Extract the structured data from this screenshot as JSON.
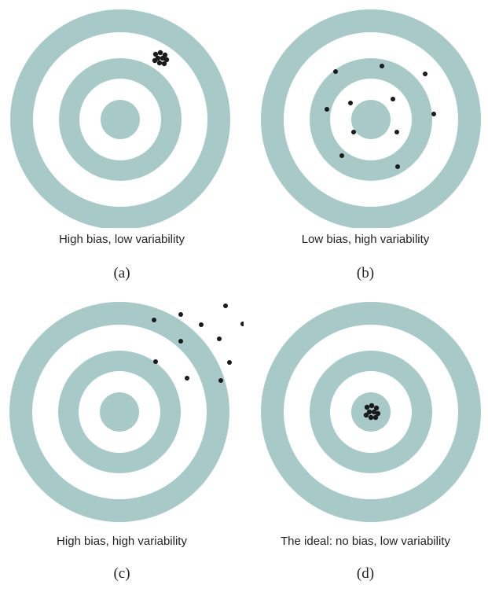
{
  "colors": {
    "ring": "#a7cac8",
    "background": "#ffffff",
    "dot": "#1a1a1a"
  },
  "panels": [
    {
      "id": "a",
      "caption": "High bias, low variability",
      "letter": "(a)"
    },
    {
      "id": "b",
      "caption": "Low bias, high variability",
      "letter": "(b)"
    },
    {
      "id": "c",
      "caption": "High bias, high variability",
      "letter": "(c)"
    },
    {
      "id": "d",
      "caption": "The ideal: no bias, low variability",
      "letter": "(d)"
    }
  ]
}
